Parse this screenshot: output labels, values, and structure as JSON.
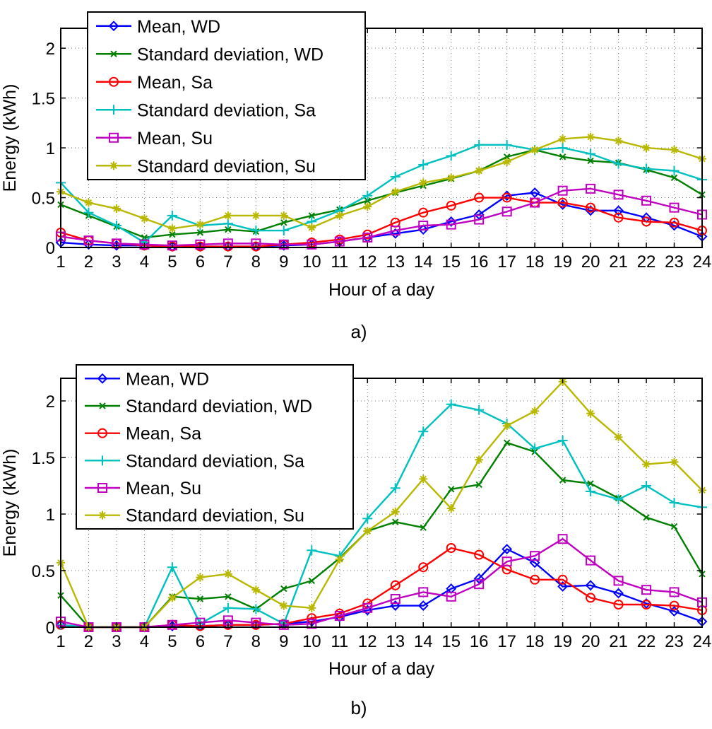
{
  "chart_data": [
    {
      "type": "line",
      "panel_label": "a)",
      "xlabel": "Hour of a day",
      "ylabel": "Energy (kWh)",
      "xlim": [
        1,
        24
      ],
      "ylim": [
        0,
        2.2
      ],
      "yticks": [
        0,
        0.5,
        1,
        1.5,
        2
      ],
      "ytick_labels": [
        "0",
        "0.5",
        "1",
        "1.5",
        "2"
      ],
      "x": [
        1,
        2,
        3,
        4,
        5,
        6,
        7,
        8,
        9,
        10,
        11,
        12,
        13,
        14,
        15,
        16,
        17,
        18,
        19,
        20,
        21,
        22,
        23,
        24
      ],
      "grid": true,
      "legend_position": "top-left",
      "series": [
        {
          "name": "Mean, WD",
          "color": "#0000ff",
          "marker": "diamond",
          "values": [
            0.05,
            0.03,
            0.02,
            0.02,
            0.01,
            0.01,
            0.01,
            0.01,
            0.02,
            0.03,
            0.06,
            0.1,
            0.14,
            0.18,
            0.26,
            0.33,
            0.52,
            0.55,
            0.43,
            0.37,
            0.37,
            0.3,
            0.22,
            0.11
          ]
        },
        {
          "name": "Standard deviation, WD",
          "color": "#008000",
          "marker": "x",
          "values": [
            0.43,
            0.32,
            0.21,
            0.1,
            0.13,
            0.15,
            0.18,
            0.16,
            0.25,
            0.32,
            0.38,
            0.47,
            0.55,
            0.62,
            0.69,
            0.77,
            0.91,
            0.98,
            0.91,
            0.87,
            0.85,
            0.78,
            0.7,
            0.53
          ]
        },
        {
          "name": "Mean, Sa",
          "color": "#ff0000",
          "marker": "circle",
          "values": [
            0.15,
            0.07,
            0.04,
            0.02,
            0.01,
            0.01,
            0.01,
            0.01,
            0.03,
            0.05,
            0.08,
            0.13,
            0.25,
            0.35,
            0.42,
            0.5,
            0.5,
            0.45,
            0.45,
            0.4,
            0.3,
            0.26,
            0.25,
            0.17
          ]
        },
        {
          "name": "Standard deviation, Sa",
          "color": "#00c0c0",
          "marker": "plus",
          "values": [
            0.65,
            0.35,
            0.22,
            0.05,
            0.32,
            0.22,
            0.24,
            0.17,
            0.17,
            0.26,
            0.37,
            0.52,
            0.71,
            0.83,
            0.92,
            1.03,
            1.03,
            0.98,
            1.0,
            0.94,
            0.84,
            0.79,
            0.77,
            0.68
          ]
        },
        {
          "name": "Mean, Su",
          "color": "#c000c0",
          "marker": "square",
          "values": [
            0.11,
            0.07,
            0.04,
            0.03,
            0.02,
            0.03,
            0.04,
            0.04,
            0.03,
            0.03,
            0.06,
            0.1,
            0.17,
            0.22,
            0.23,
            0.28,
            0.36,
            0.45,
            0.57,
            0.59,
            0.53,
            0.47,
            0.4,
            0.33
          ]
        },
        {
          "name": "Standard deviation, Su",
          "color": "#b8b800",
          "marker": "star",
          "values": [
            0.56,
            0.45,
            0.39,
            0.29,
            0.19,
            0.23,
            0.32,
            0.32,
            0.32,
            0.2,
            0.32,
            0.41,
            0.56,
            0.65,
            0.7,
            0.77,
            0.86,
            0.98,
            1.09,
            1.11,
            1.07,
            1.0,
            0.98,
            0.89
          ]
        }
      ]
    },
    {
      "type": "line",
      "panel_label": "b)",
      "xlabel": "Hour of a day",
      "ylabel": "Energy (kWh)",
      "xlim": [
        1,
        24
      ],
      "ylim": [
        0,
        2.2
      ],
      "yticks": [
        0,
        0.5,
        1,
        1.5,
        2
      ],
      "ytick_labels": [
        "0",
        "0.5",
        "1",
        "1.5",
        "2"
      ],
      "x": [
        1,
        2,
        3,
        4,
        5,
        6,
        7,
        8,
        9,
        10,
        11,
        12,
        13,
        14,
        15,
        16,
        17,
        18,
        19,
        20,
        21,
        22,
        23,
        24
      ],
      "grid": true,
      "legend_position": "top-left",
      "series": [
        {
          "name": "Mean, WD",
          "color": "#0000ff",
          "marker": "diamond",
          "values": [
            0.02,
            0,
            0,
            0,
            0.01,
            0.01,
            0.02,
            0.02,
            0.03,
            0.05,
            0.09,
            0.15,
            0.19,
            0.19,
            0.34,
            0.43,
            0.69,
            0.57,
            0.36,
            0.37,
            0.3,
            0.21,
            0.14,
            0.05
          ]
        },
        {
          "name": "Standard deviation, WD",
          "color": "#008000",
          "marker": "x",
          "values": [
            0.28,
            0,
            0,
            0,
            0.27,
            0.25,
            0.27,
            0.16,
            0.34,
            0.41,
            0.61,
            0.85,
            0.93,
            0.88,
            1.22,
            1.26,
            1.63,
            1.55,
            1.3,
            1.27,
            1.14,
            0.97,
            0.89,
            0.47
          ]
        },
        {
          "name": "Mean, Sa",
          "color": "#ff0000",
          "marker": "circle",
          "values": [
            0.02,
            0,
            0,
            0,
            0.02,
            0.01,
            0.02,
            0.02,
            0.03,
            0.08,
            0.12,
            0.21,
            0.37,
            0.53,
            0.7,
            0.64,
            0.51,
            0.42,
            0.42,
            0.26,
            0.2,
            0.2,
            0.19,
            0.15
          ]
        },
        {
          "name": "Standard deviation, Sa",
          "color": "#00c0c0",
          "marker": "plus",
          "values": [
            0.02,
            0,
            0,
            0,
            0.53,
            0.03,
            0.17,
            0.16,
            0.03,
            0.68,
            0.63,
            0.96,
            1.23,
            1.73,
            1.97,
            1.92,
            1.8,
            1.58,
            1.65,
            1.2,
            1.13,
            1.25,
            1.1,
            1.06
          ]
        },
        {
          "name": "Mean, Su",
          "color": "#c000c0",
          "marker": "square",
          "values": [
            0.05,
            0,
            0,
            0,
            0.02,
            0.04,
            0.06,
            0.04,
            0.02,
            0.03,
            0.1,
            0.17,
            0.25,
            0.31,
            0.27,
            0.38,
            0.58,
            0.63,
            0.78,
            0.59,
            0.41,
            0.33,
            0.31,
            0.22
          ]
        },
        {
          "name": "Standard deviation, Su",
          "color": "#b8b800",
          "marker": "star",
          "values": [
            0.57,
            0,
            0,
            0,
            0.26,
            0.44,
            0.47,
            0.33,
            0.19,
            0.17,
            0.6,
            0.85,
            1.02,
            1.31,
            1.05,
            1.48,
            1.78,
            1.91,
            2.17,
            1.89,
            1.68,
            1.44,
            1.46,
            1.21
          ]
        }
      ]
    }
  ]
}
